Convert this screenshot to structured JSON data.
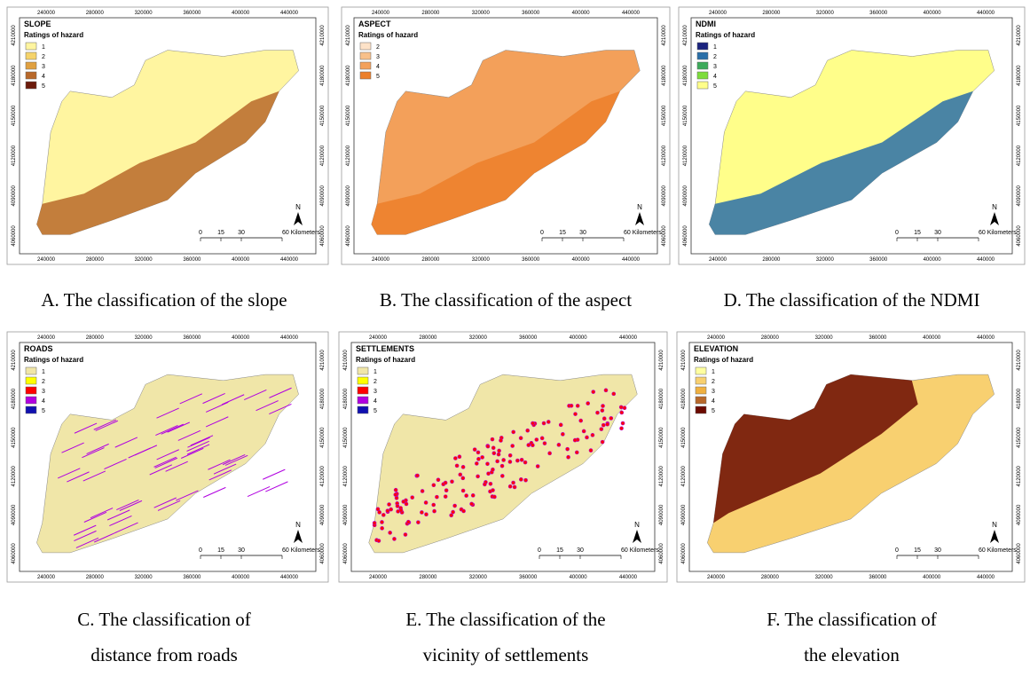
{
  "x_coords": [
    "240000",
    "280000",
    "320000",
    "360000",
    "400000",
    "440000"
  ],
  "y_coords": [
    "4060000",
    "4090000",
    "4120000",
    "4150000",
    "4180000",
    "4210000"
  ],
  "panels": [
    {
      "title": "SLOPE",
      "legend_title": "Ratings of hazard",
      "legend": [
        {
          "label": "1",
          "color": "#fff5a0"
        },
        {
          "label": "2",
          "color": "#f5d36b"
        },
        {
          "label": "3",
          "color": "#e0a040"
        },
        {
          "label": "4",
          "color": "#b8682a"
        },
        {
          "label": "5",
          "color": "#6b1a0a"
        }
      ],
      "scale": [
        "0",
        "15",
        "30",
        "60 Kilometers"
      ],
      "north": "N",
      "caption": [
        "A. The classification of the slope"
      ]
    },
    {
      "title": "ASPECT",
      "legend_title": "Ratings of hazard",
      "legend": [
        {
          "label": "2",
          "color": "#fde2c8"
        },
        {
          "label": "3",
          "color": "#f8c08a"
        },
        {
          "label": "4",
          "color": "#f3a05a"
        },
        {
          "label": "5",
          "color": "#ec7f2a"
        }
      ],
      "scale": [
        "0",
        "15",
        "30",
        "60 Kilometers"
      ],
      "north": "N",
      "caption": [
        "B. The classification of the aspect"
      ]
    },
    {
      "title": "NDMI",
      "legend_title": "Ratings of hazard",
      "legend": [
        {
          "label": "1",
          "color": "#1a237e"
        },
        {
          "label": "2",
          "color": "#2a6fa8"
        },
        {
          "label": "3",
          "color": "#3daa5a"
        },
        {
          "label": "4",
          "color": "#7ddc3c"
        },
        {
          "label": "5",
          "color": "#fffe8a"
        }
      ],
      "scale": [
        "0",
        "15",
        "30",
        "60 Kilometers"
      ],
      "north": "N",
      "caption": [
        "D. The classification of the NDMI"
      ]
    },
    {
      "title": "ROADS",
      "legend_title": "Ratings of hazard",
      "legend": [
        {
          "label": "1",
          "color": "#f0e6a8"
        },
        {
          "label": "2",
          "color": "#ffff00"
        },
        {
          "label": "3",
          "color": "#ff0000"
        },
        {
          "label": "4",
          "color": "#b000e0"
        },
        {
          "label": "5",
          "color": "#1010b0"
        }
      ],
      "scale": [
        "0",
        "15",
        "30",
        "60 Kilometers"
      ],
      "north": "N",
      "caption": [
        "C. The classification of",
        "distance from roads"
      ]
    },
    {
      "title": "SETTLEMENTS",
      "legend_title": "Ratings of hazard",
      "legend": [
        {
          "label": "1",
          "color": "#f0e6a8"
        },
        {
          "label": "2",
          "color": "#ffff00"
        },
        {
          "label": "3",
          "color": "#ff0000"
        },
        {
          "label": "4",
          "color": "#b000e0"
        },
        {
          "label": "5",
          "color": "#1010b0"
        }
      ],
      "scale": [
        "0",
        "15",
        "30",
        "60 Kilometers"
      ],
      "north": "N",
      "caption": [
        "E. The classification of the",
        "vicinity of settlements"
      ]
    },
    {
      "title": "ELEVATION",
      "legend_title": "Ratings of hazard",
      "legend": [
        {
          "label": "1",
          "color": "#ffffa0"
        },
        {
          "label": "2",
          "color": "#f8d070"
        },
        {
          "label": "3",
          "color": "#f0b040"
        },
        {
          "label": "4",
          "color": "#b8682a"
        },
        {
          "label": "5",
          "color": "#6b0a00"
        }
      ],
      "scale": [
        "0",
        "15",
        "30",
        "60 Kilometers"
      ],
      "north": "N",
      "caption": [
        "F. The classification of",
        "the elevation"
      ]
    }
  ]
}
